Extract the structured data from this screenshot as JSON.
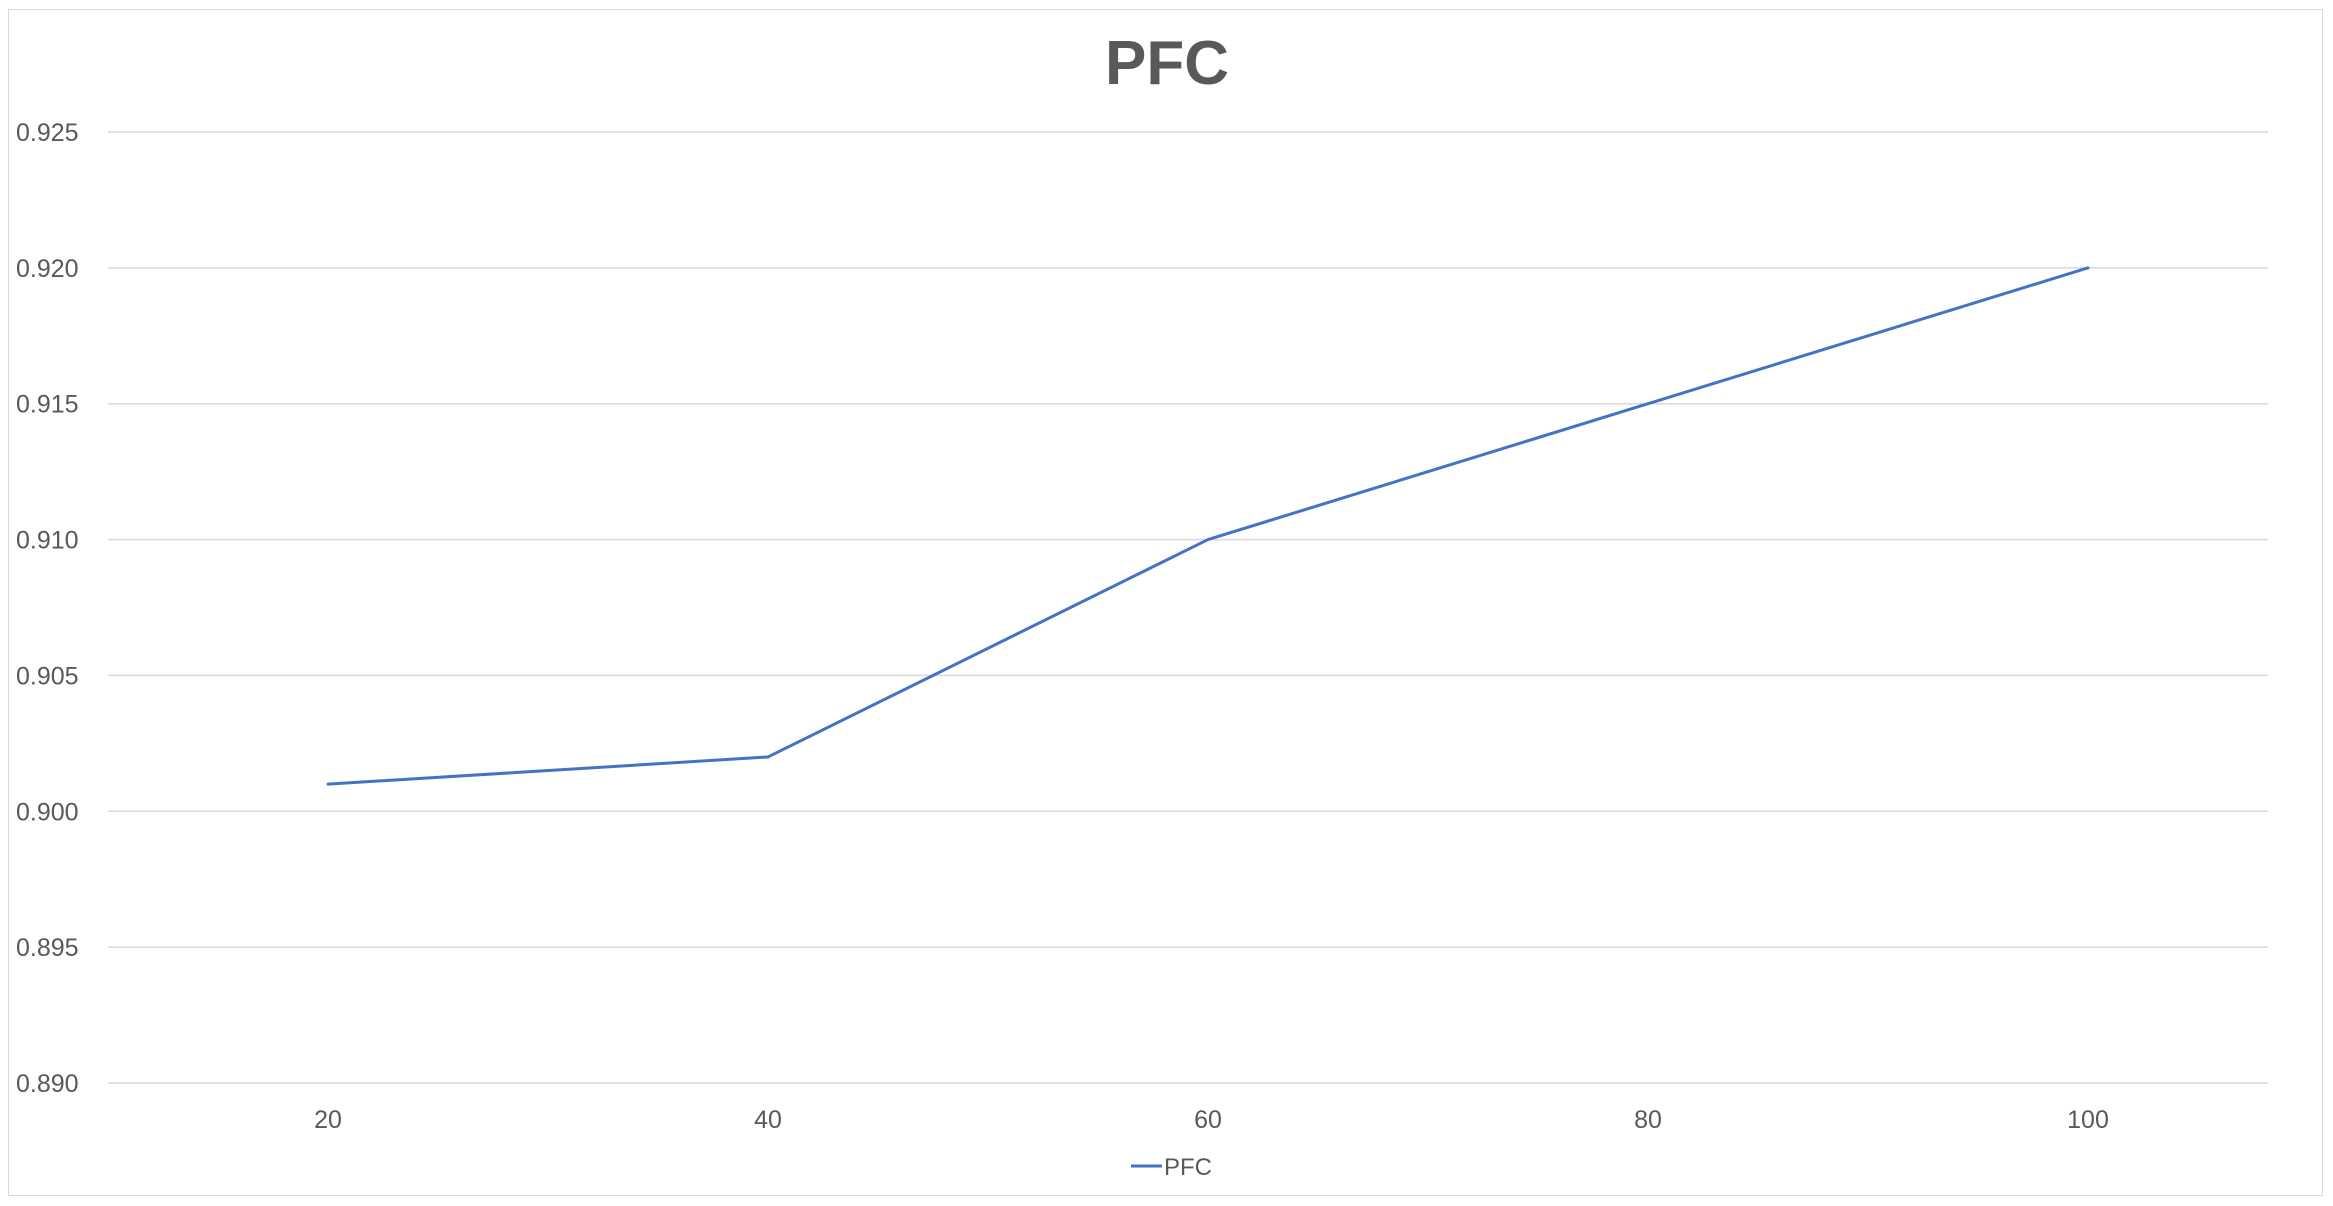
{
  "chart_data": {
    "type": "line",
    "title": "PFC",
    "xlabel": "",
    "ylabel": "",
    "x": [
      20,
      40,
      60,
      80,
      100
    ],
    "x_tick_labels": [
      "20",
      "40",
      "60",
      "80",
      "100"
    ],
    "ylim": [
      0.89,
      0.925
    ],
    "y_ticks": [
      0.89,
      0.895,
      0.9,
      0.905,
      0.91,
      0.915,
      0.92,
      0.925
    ],
    "y_tick_labels": [
      "0.890",
      "0.895",
      "0.900",
      "0.905",
      "0.910",
      "0.915",
      "0.920",
      "0.925"
    ],
    "series": [
      {
        "name": "PFC",
        "values": [
          0.901,
          0.902,
          0.91,
          0.915,
          0.92
        ],
        "color": "#4472c4"
      }
    ],
    "grid": true,
    "gridline_color": "#d9d9d9",
    "legend_position": "bottom"
  }
}
